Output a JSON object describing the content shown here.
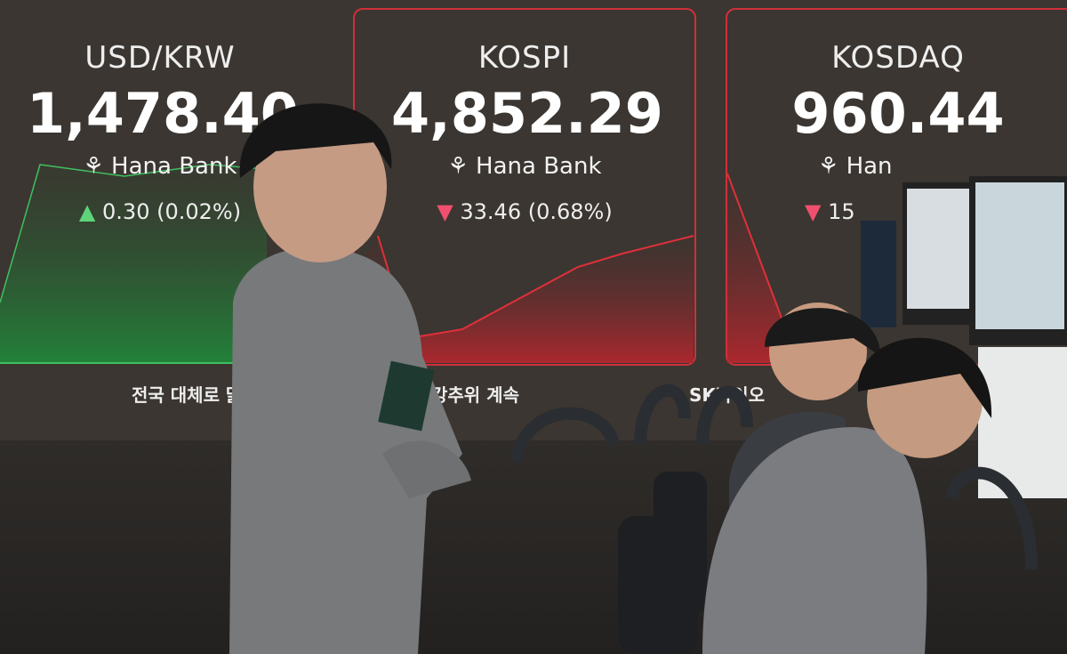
{
  "panels": [
    {
      "title": "USD/KRW",
      "value": "1,478.40",
      "bank": "Hana Bank",
      "direction": "up",
      "arrow": "▲",
      "change": "0.30 (0.02%)",
      "color": "#3fbf5f"
    },
    {
      "title": "KOSPI",
      "value": "4,852.29",
      "bank": "Hana Bank",
      "direction": "down",
      "arrow": "▼",
      "change": "33.46 (0.68%)",
      "color": "#e0303a"
    },
    {
      "title": "KOSDAQ",
      "value": "960.44",
      "bank": "Han",
      "direction": "down",
      "arrow": "▼",
      "change": "15",
      "color": "#e0303a"
    }
  ],
  "ticker": [
    "전국 대체로 맑",
    "강추위 계속",
    "SK바이오"
  ]
}
